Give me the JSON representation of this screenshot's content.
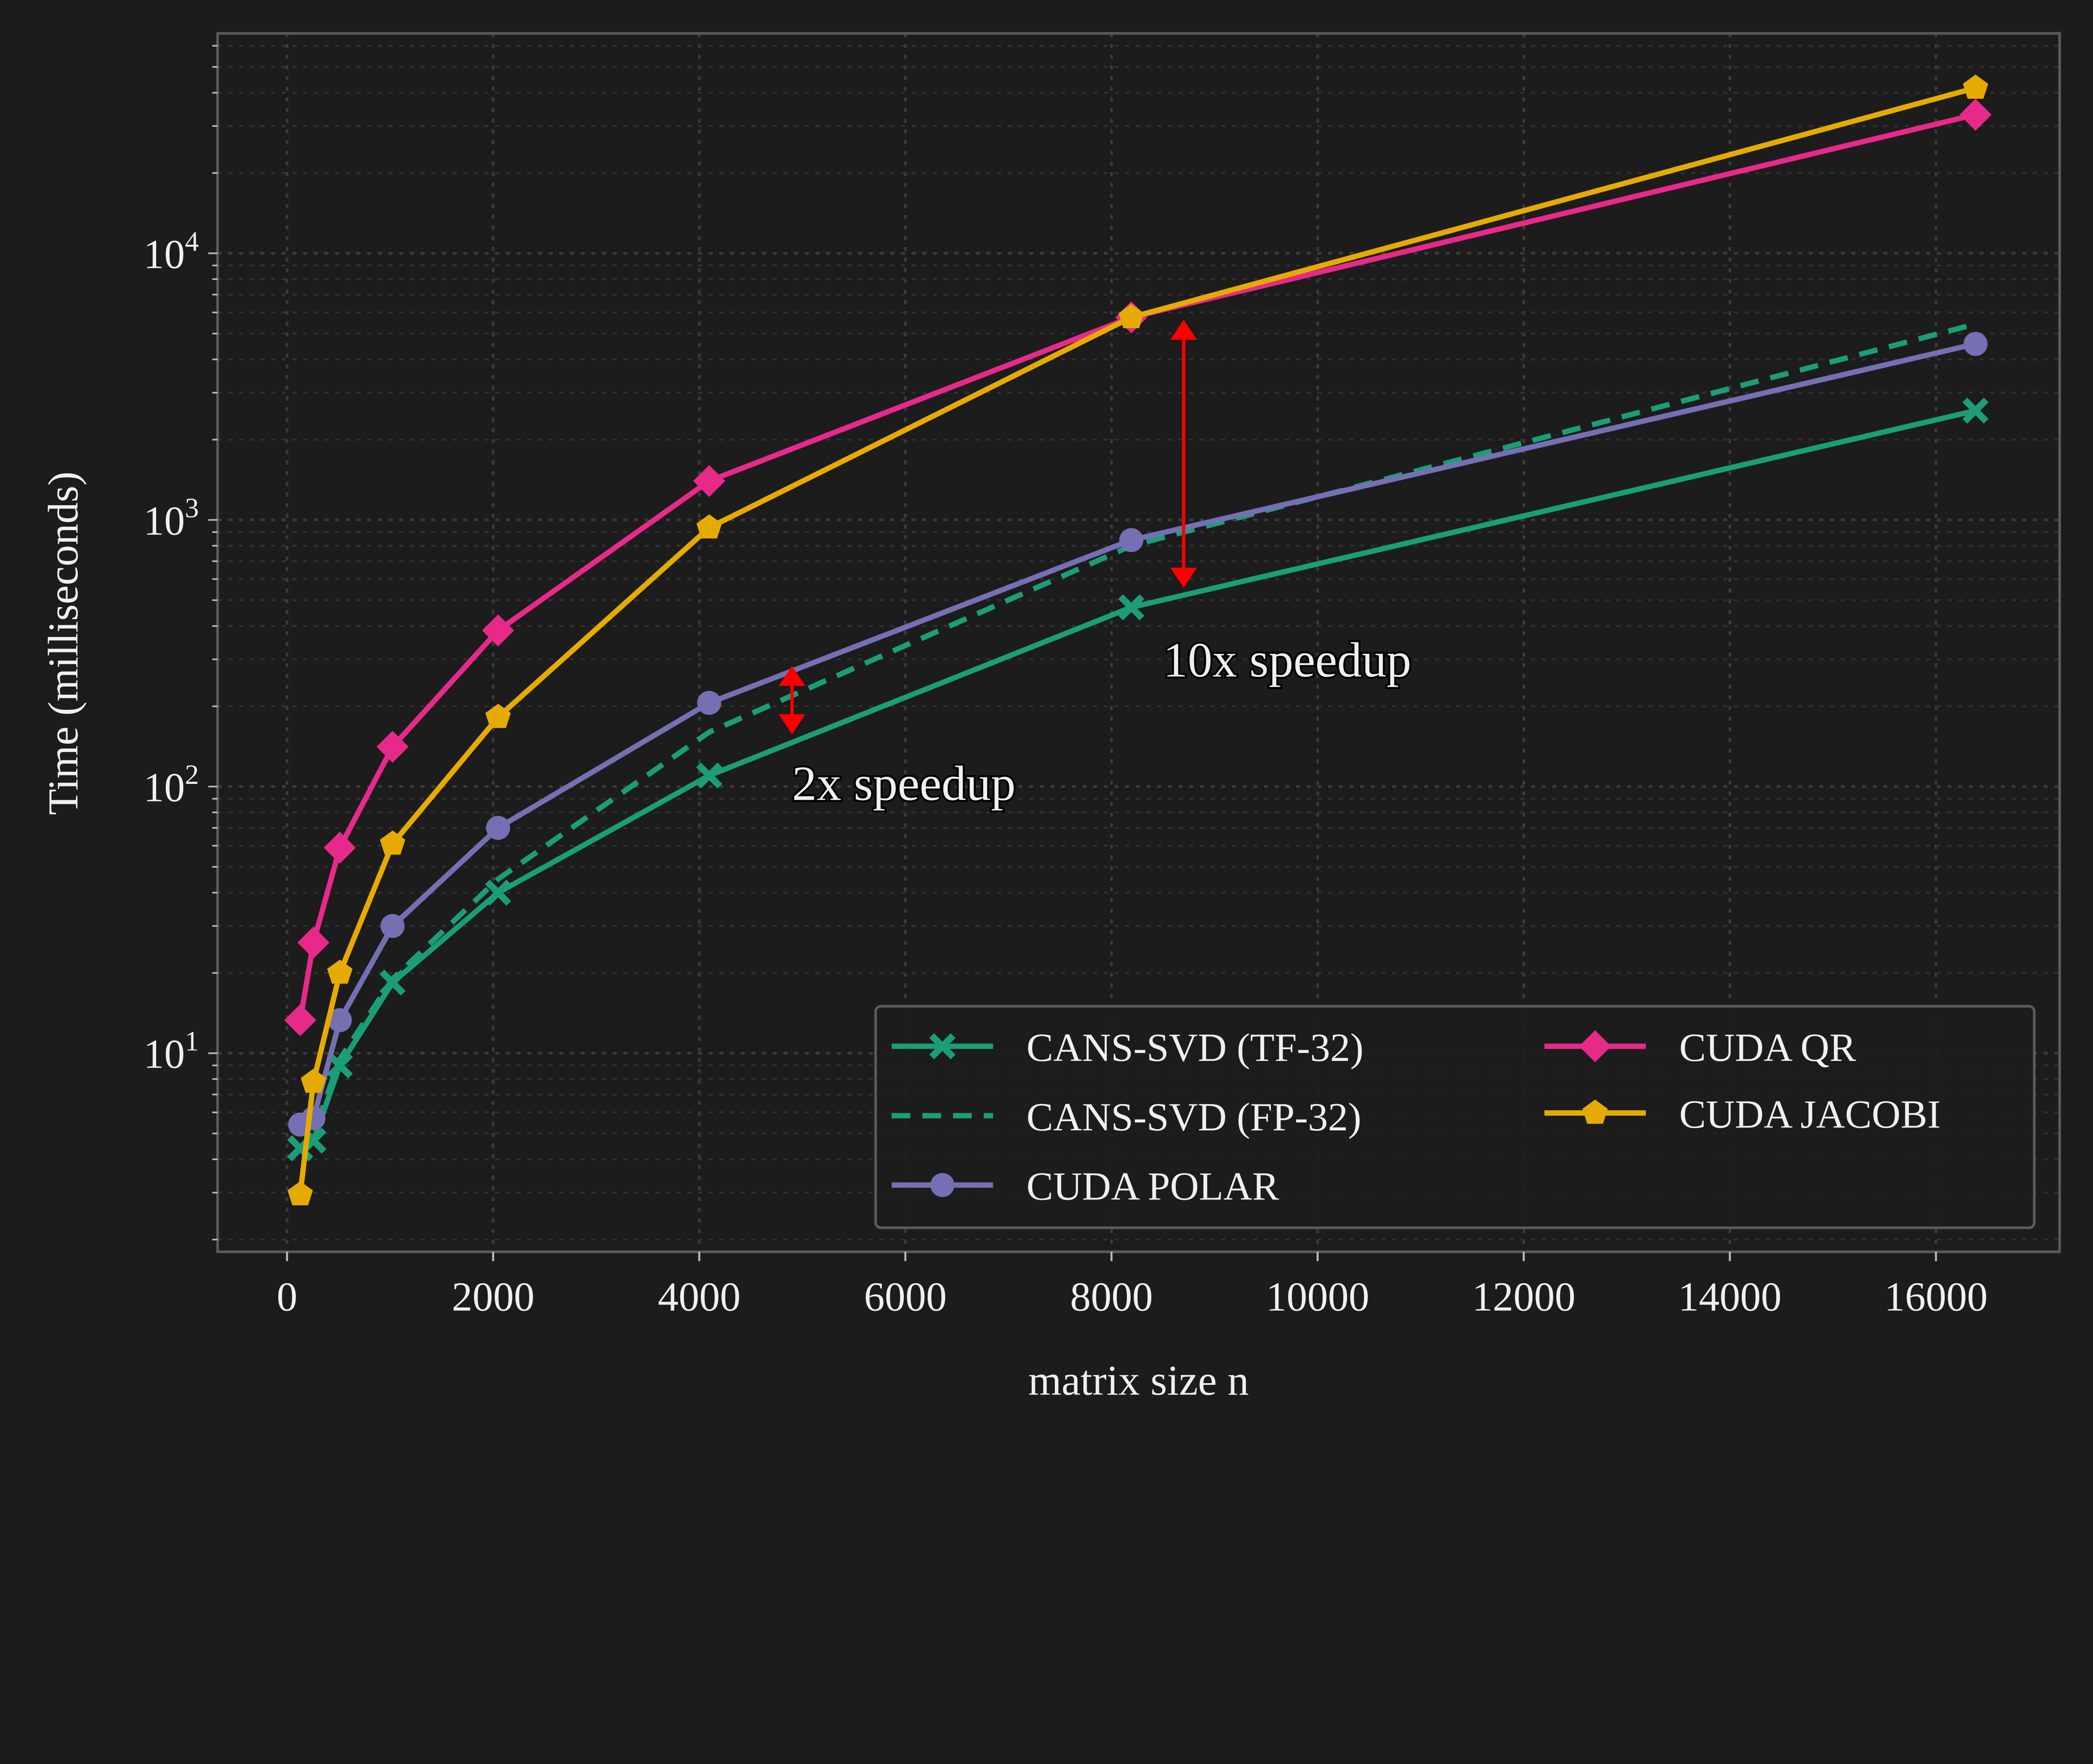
{
  "chart_data": {
    "type": "line",
    "xlabel": "matrix size n",
    "ylabel": "Time (milliseconds)",
    "xscale": "linear",
    "yscale": "log",
    "xlim": [
      -674,
      17200
    ],
    "ylim": [
      1.8,
      66800
    ],
    "xticks": [
      0,
      2000,
      4000,
      6000,
      8000,
      10000,
      12000,
      14000,
      16000
    ],
    "yticks": [
      10,
      100,
      1000,
      10000
    ],
    "ytick_labels": [
      {
        "base": "10",
        "exp": "1"
      },
      {
        "base": "10",
        "exp": "2"
      },
      {
        "base": "10",
        "exp": "3"
      },
      {
        "base": "10",
        "exp": "4"
      }
    ],
    "grid": true,
    "legend_placement": "lower-right",
    "background": "#1c1c1c",
    "x": [
      128,
      256,
      512,
      1024,
      2048,
      4096,
      8192,
      16384
    ],
    "series": [
      {
        "name": "CANS-SVD (TF-32)",
        "color": "#1b9e77",
        "style": "solid",
        "marker": "X",
        "values": [
          4.4,
          4.7,
          9,
          18.4,
          40,
          110,
          470,
          2570
        ]
      },
      {
        "name": "CANS-SVD (FP-32)",
        "color": "#1b9e77",
        "style": "dashed",
        "marker": "none",
        "values": [
          4.4,
          5,
          9.5,
          19,
          45,
          160,
          800,
          5430
        ]
      },
      {
        "name": "CUDA POLAR",
        "color": "#7570b3",
        "style": "solid",
        "marker": "circle",
        "values": [
          5.4,
          5.7,
          13.3,
          30,
          70,
          206,
          840,
          4570
        ]
      },
      {
        "name": "CUDA QR",
        "color": "#e7298a",
        "style": "solid",
        "marker": "diamond",
        "values": [
          13.3,
          26,
          59,
          141,
          385,
          1400,
          5750,
          33100
        ]
      },
      {
        "name": "CUDA JACOBI",
        "color": "#e6ab02",
        "style": "solid",
        "marker": "pentagon",
        "values": [
          2.95,
          7.8,
          20,
          61,
          182,
          935,
          5750,
          41700
        ]
      }
    ],
    "annotations": [
      {
        "text": "2x speedup",
        "arrow_x": 4900,
        "arrow_y": [
          158,
          282
        ],
        "text_x": 4900,
        "text_y": 100,
        "color": "#ff0000"
      },
      {
        "text": "10x speedup",
        "arrow_x": 8700,
        "arrow_y": [
          560,
          5600
        ],
        "text_x": 8500,
        "text_y": 290,
        "color": "#ff0000"
      }
    ]
  }
}
